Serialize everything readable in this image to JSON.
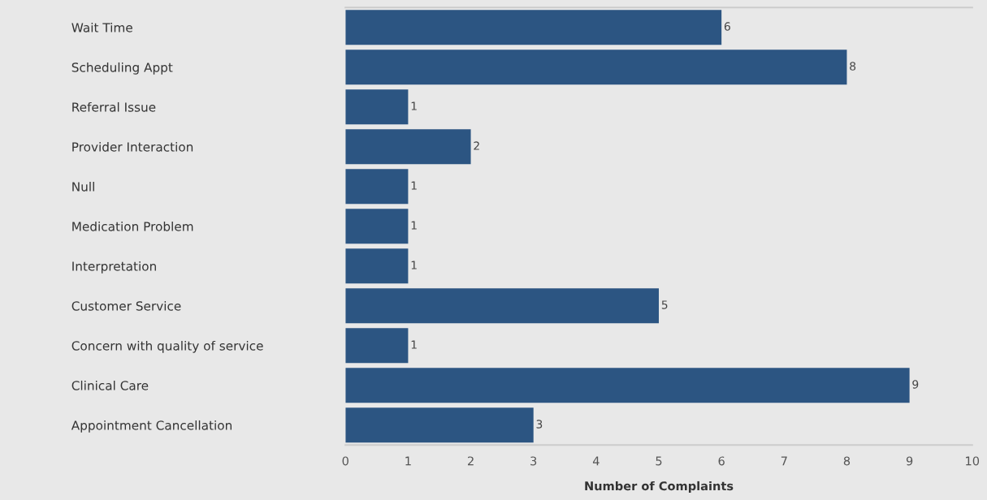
{
  "chart_data": {
    "type": "bar",
    "orientation": "horizontal",
    "xlabel": "Number of Complaints",
    "categories": [
      "Wait Time",
      "Scheduling Appt",
      "Referral Issue",
      "Provider Interaction",
      "Null",
      "Medication Problem",
      "Interpretation",
      "Customer Service",
      "Concern with quality of service",
      "Clinical Care",
      "Appointment Cancellation"
    ],
    "values": [
      6,
      8,
      1,
      2,
      1,
      1,
      1,
      5,
      1,
      9,
      3
    ],
    "color": "#2c5582",
    "data_labels": true,
    "xlim": [
      0,
      10
    ],
    "xticks": [
      0,
      1,
      2,
      3,
      4,
      5,
      6,
      7,
      8,
      9,
      10
    ],
    "grid": false,
    "legend": false
  }
}
